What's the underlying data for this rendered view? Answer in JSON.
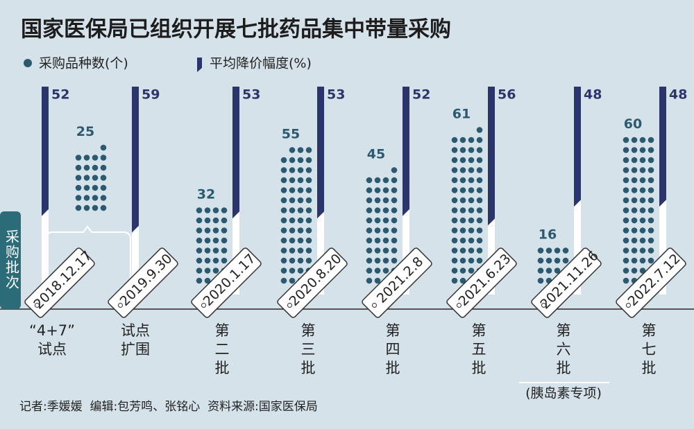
{
  "chart_data": {
    "type": "combo",
    "title": "国家医保局已组织开展七批药品集中带量采购",
    "y_label": "采购批次",
    "categories": [
      "2018.12.17",
      "2019.9.30",
      "2020.1.17",
      "2020.8.20",
      "2021.2.8",
      "2021.6.23",
      "2021.11.26",
      "2022.7.12"
    ],
    "batch_labels": [
      [
        "“4+7”",
        "试点"
      ],
      [
        "试点",
        "扩围"
      ],
      [
        "第",
        "二",
        "批"
      ],
      [
        "第",
        "三",
        "批"
      ],
      [
        "第",
        "四",
        "批"
      ],
      [
        "第",
        "五",
        "批"
      ],
      [
        "第",
        "六",
        "批"
      ],
      [
        "第",
        "七",
        "批"
      ]
    ],
    "note": "(胰岛素专项)",
    "series": [
      {
        "name": "采购品种数(个)",
        "type": "dots",
        "color": "#2b5a70",
        "values": [
          25,
          null,
          32,
          55,
          45,
          61,
          16,
          60
        ]
      },
      {
        "name": "平均降价幅度(%)",
        "type": "bar",
        "color": "#2c356b",
        "values": [
          52,
          59,
          53,
          53,
          52,
          56,
          48,
          48
        ]
      }
    ],
    "footer": "记者:季媛媛  编辑:包芳鸣、张铭心  资料来源:国家医保局"
  }
}
